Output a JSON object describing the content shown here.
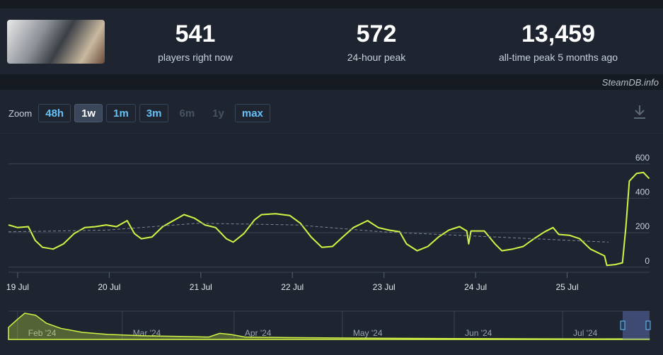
{
  "header": {
    "stats": [
      {
        "value": "541",
        "label": "players right now"
      },
      {
        "value": "572",
        "label": "24-hour peak"
      },
      {
        "value": "13,459",
        "label": "all-time peak 5 months ago"
      }
    ],
    "brand": "SteamDB.info"
  },
  "zoom": {
    "label": "Zoom",
    "buttons": [
      {
        "label": "48h",
        "state": "normal"
      },
      {
        "label": "1w",
        "state": "active"
      },
      {
        "label": "1m",
        "state": "normal"
      },
      {
        "label": "3m",
        "state": "normal"
      },
      {
        "label": "6m",
        "state": "disabled"
      },
      {
        "label": "1y",
        "state": "disabled"
      },
      {
        "label": "max",
        "state": "normal"
      }
    ]
  },
  "chart_data": [
    {
      "type": "line",
      "xlim": [
        -2.4,
        165.6
      ],
      "ylim": [
        -30,
        780
      ],
      "xticks": [
        {
          "value": 0,
          "label": "19 Jul"
        },
        {
          "value": 24,
          "label": "20 Jul"
        },
        {
          "value": 48,
          "label": "21 Jul"
        },
        {
          "value": 72,
          "label": "22 Jul"
        },
        {
          "value": 96,
          "label": "23 Jul"
        },
        {
          "value": 120,
          "label": "24 Jul"
        },
        {
          "value": 144,
          "label": "25 Jul"
        }
      ],
      "yticks": [
        0,
        200,
        400,
        600
      ],
      "grid": true,
      "series": [
        {
          "color": "#d4f445",
          "style": "solid",
          "x": [
            -2.4,
            0,
            2.8,
            4.6,
            6.5,
            9.3,
            12.0,
            14.8,
            17.6,
            20.4,
            23.2,
            25.9,
            28.7,
            30.6,
            32.4,
            35.2,
            38.0,
            40.8,
            43.6,
            46.3,
            49.1,
            51.9,
            54.7,
            56.5,
            59.3,
            62.1,
            63.9,
            67.6,
            71.3,
            74.1,
            76.9,
            79.7,
            82.5,
            85.2,
            88.0,
            91.7,
            94.5,
            97.3,
            100.1,
            101.9,
            104.7,
            107.5,
            110.3,
            113.0,
            115.8,
            117.7,
            118.2,
            118.8,
            122.3,
            125.1,
            126.9,
            129.7,
            132.5,
            135.3,
            138.1,
            140.3,
            141.8,
            144.6,
            147.3,
            150.1,
            152.9,
            153.8,
            154.4,
            156.6,
            158.5,
            159.4,
            160.3,
            162.2,
            164.0,
            165.5
          ],
          "values": [
            245,
            230,
            235,
            155,
            115,
            105,
            135,
            195,
            230,
            235,
            245,
            235,
            270,
            195,
            165,
            175,
            235,
            270,
            305,
            285,
            245,
            230,
            165,
            145,
            195,
            275,
            305,
            310,
            300,
            255,
            175,
            115,
            120,
            175,
            230,
            270,
            230,
            215,
            205,
            135,
            95,
            120,
            175,
            215,
            235,
            210,
            135,
            210,
            210,
            135,
            95,
            105,
            120,
            165,
            205,
            230,
            190,
            185,
            165,
            105,
            75,
            65,
            10,
            15,
            25,
            235,
            500,
            545,
            550,
            515
          ]
        },
        {
          "color": "#7f8894",
          "style": "dashed",
          "x": [
            -2.4,
            23.2,
            47.3,
            73.2,
            95.4,
            125.1,
            154.8
          ],
          "values": [
            205,
            215,
            255,
            245,
            205,
            175,
            145
          ]
        }
      ]
    },
    {
      "type": "area",
      "color": "#d4f445",
      "xlim": [
        -2.5,
        175.1
      ],
      "ylim": [
        0,
        14000
      ],
      "xticks": [
        {
          "value": 0,
          "label": "Feb '24"
        },
        {
          "value": 29,
          "label": "Mar '24"
        },
        {
          "value": 60,
          "label": "Apr '24"
        },
        {
          "value": 90,
          "label": "May '24"
        },
        {
          "value": 121,
          "label": "Jun '24"
        },
        {
          "value": 151,
          "label": "Jul '24"
        }
      ],
      "x": [
        -2.5,
        0,
        2,
        5,
        8,
        12,
        18,
        25,
        35,
        45,
        53,
        56,
        59,
        63,
        75,
        100,
        130,
        160,
        175
      ],
      "values": [
        6000,
        10000,
        13000,
        12000,
        8000,
        5500,
        3500,
        2500,
        1800,
        1500,
        1200,
        3000,
        2500,
        1200,
        900,
        600,
        400,
        250,
        300
      ]
    }
  ]
}
